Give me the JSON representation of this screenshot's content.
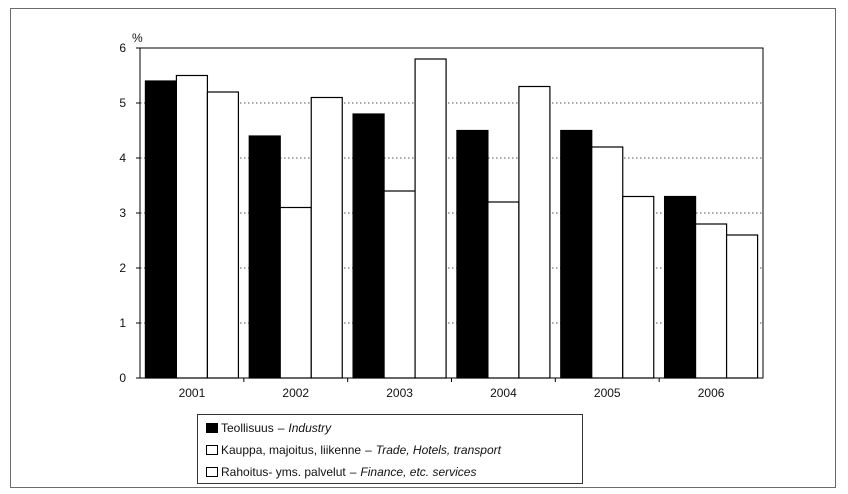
{
  "chart_data": {
    "type": "bar",
    "title": "",
    "ylabel": "%",
    "xlabel": "",
    "ylim": [
      0,
      6
    ],
    "yticks": [
      0,
      1,
      2,
      3,
      4,
      5,
      6
    ],
    "grid": "horizontal-dotted",
    "legend_placement": "bottom",
    "categories": [
      "2001",
      "2002",
      "2003",
      "2004",
      "2005",
      "2006"
    ],
    "series": [
      {
        "name": "Teollisuus",
        "name_en": "Industry",
        "color": "#000000",
        "values": [
          5.4,
          4.4,
          4.8,
          4.5,
          4.5,
          3.3
        ]
      },
      {
        "name": "Kauppa, majoitus, liikenne",
        "name_en": "Trade, Hotels, transport",
        "color": "#ffffff",
        "values": [
          5.5,
          3.1,
          3.4,
          3.2,
          4.2,
          2.8
        ]
      },
      {
        "name": "Rahoitus- yms. palvelut",
        "name_en": "Finance, etc. services",
        "color": "#ffffff",
        "values": [
          5.2,
          5.1,
          5.8,
          5.3,
          3.3,
          2.6
        ]
      }
    ]
  }
}
